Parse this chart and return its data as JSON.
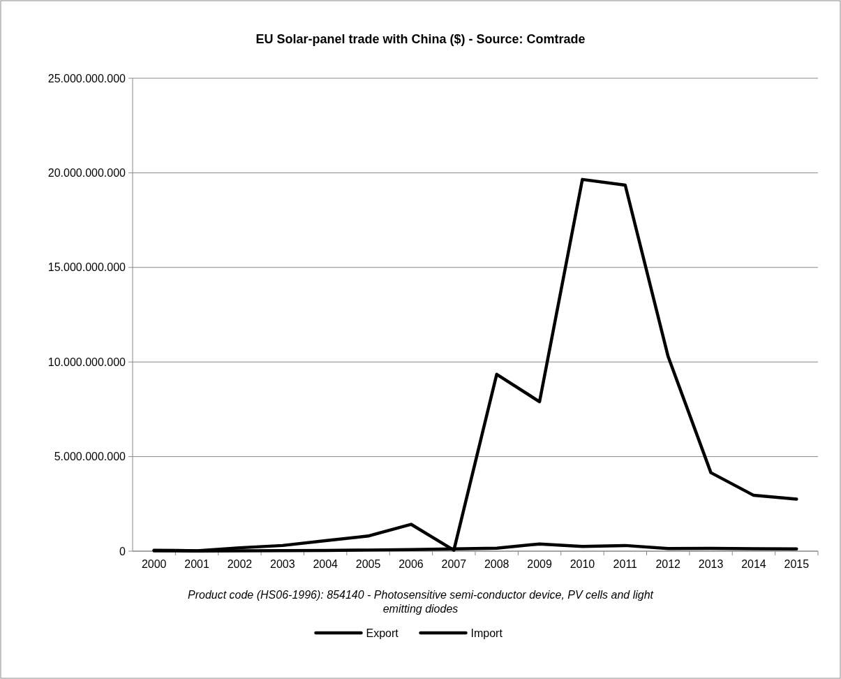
{
  "chart_data": {
    "type": "line",
    "title": "EU Solar-panel trade with China ($) - Source: Comtrade",
    "xlabel": "Product code (HS06-1996): 854140 - Photosensitive semi-conductor device, PV cells and light emitting diodes",
    "categories": [
      "2000",
      "2001",
      "2002",
      "2003",
      "2004",
      "2005",
      "2006",
      "2007",
      "2008",
      "2009",
      "2010",
      "2011",
      "2012",
      "2013",
      "2014",
      "2015"
    ],
    "series": [
      {
        "name": "Export",
        "color": "#000000",
        "values": [
          20000000,
          10000000,
          20000000,
          30000000,
          40000000,
          60000000,
          80000000,
          120000000,
          160000000,
          380000000,
          250000000,
          300000000,
          140000000,
          150000000,
          130000000,
          120000000
        ]
      },
      {
        "name": "Import",
        "color": "#000000",
        "values": [
          50000000,
          20000000,
          180000000,
          300000000,
          550000000,
          800000000,
          1420000000,
          50000000,
          9350000000,
          7900000000,
          19650000000,
          19350000000,
          10300000000,
          4150000000,
          2950000000,
          2750000000
        ]
      }
    ],
    "ylim": [
      0,
      25000000000
    ],
    "yticks": [
      {
        "value": 0,
        "label": "0"
      },
      {
        "value": 5000000000,
        "label": "5.000.000.000"
      },
      {
        "value": 10000000000,
        "label": "10.000.000.000"
      },
      {
        "value": 15000000000,
        "label": "15.000.000.000"
      },
      {
        "value": 20000000000,
        "label": "20.000.000.000"
      },
      {
        "value": 25000000000,
        "label": "25.000.000.000"
      }
    ],
    "grid": "y",
    "legend": "bottom",
    "line_style": "solid"
  }
}
